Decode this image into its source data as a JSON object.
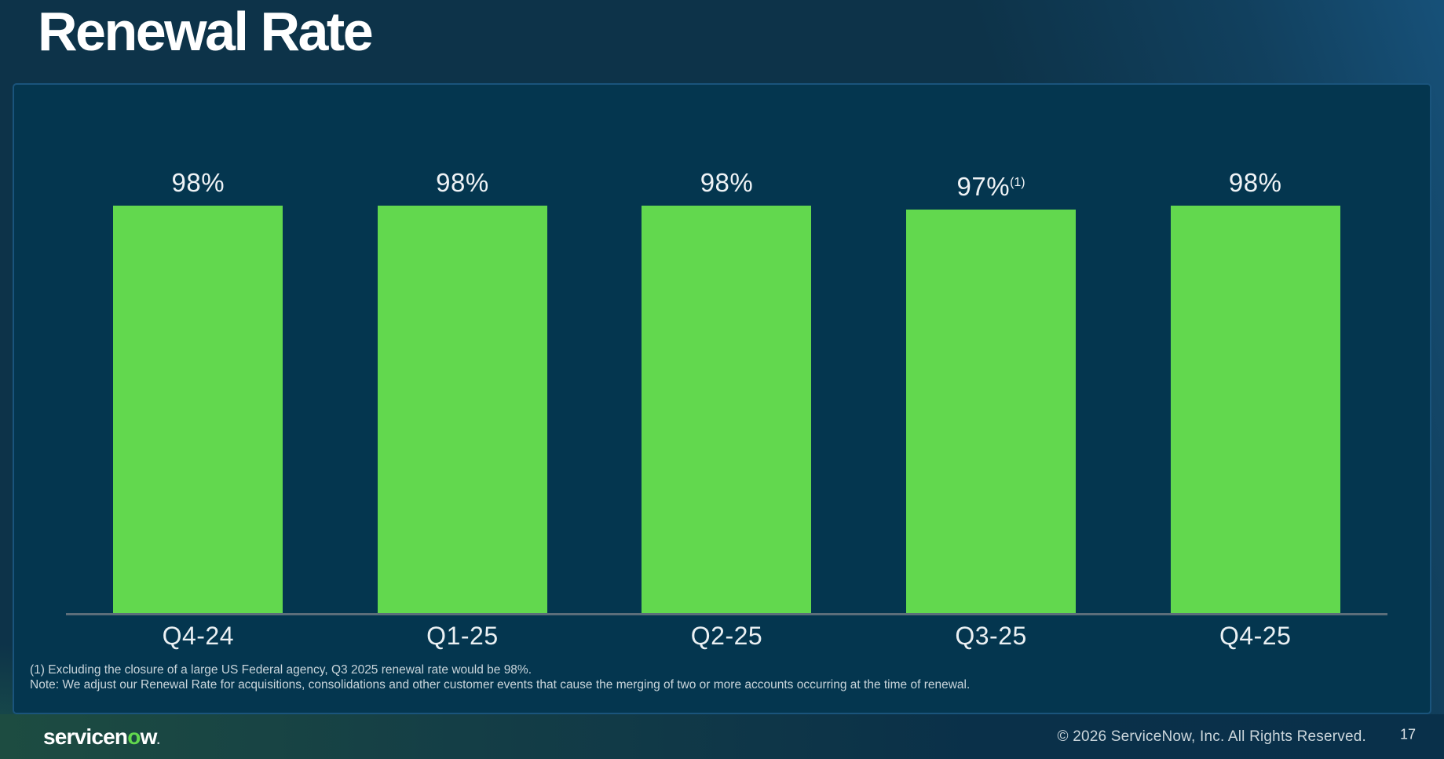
{
  "slide": {
    "title": "Renewal Rate"
  },
  "chart_data": {
    "type": "bar",
    "title": "Renewal Rate",
    "categories": [
      "Q4-24",
      "Q1-25",
      "Q2-25",
      "Q3-25",
      "Q4-25"
    ],
    "values": [
      98,
      98,
      98,
      97,
      98
    ],
    "value_labels": [
      "98%",
      "98%",
      "98%",
      "97%",
      "98%"
    ],
    "value_label_superscripts": [
      "",
      "",
      "",
      "(1)",
      ""
    ],
    "unit": "%",
    "ylim": [
      0,
      100
    ],
    "bar_color": "#62D84E",
    "grid": false,
    "legend": "none",
    "value_label_position": "above",
    "baseline_axis": true
  },
  "footnotes": {
    "line1": "(1) Excluding the closure of a large US Federal agency, Q3 2025 renewal rate would be 98%.",
    "line2": "Note: We adjust our Renewal Rate for acquisitions, consolidations and other customer events that cause the merging of two or more accounts occurring at the time of renewal."
  },
  "footer": {
    "logo": {
      "pre": "servicen",
      "o": "o",
      "post": "w",
      "dot": "."
    },
    "copyright": "© 2026 ServiceNow, Inc. All Rights Reserved.",
    "page_number": "17"
  },
  "colors": {
    "background": "#0D3349",
    "panel_background": "#04364F",
    "panel_border": "#1A547C",
    "bar_green": "#62D84E",
    "axis_line": "#5C6E7A",
    "footer_green_left": "#1D4C41",
    "footer_navy_right": "#09304A",
    "text_primary": "#FFFFFF",
    "text_secondary": "#CBD6DC"
  }
}
